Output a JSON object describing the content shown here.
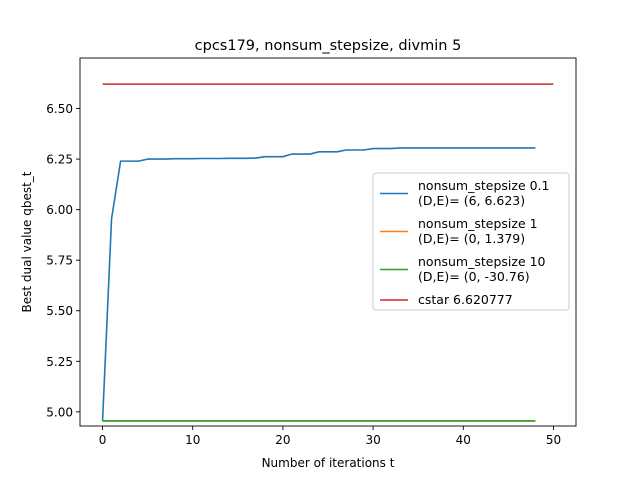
{
  "chart_data": {
    "type": "line",
    "title": "cpcs179, nonsum_stepsize, divmin 5",
    "xlabel": "Number of iterations t",
    "ylabel": "Best dual value qbest_t",
    "xlim": [
      -2.5,
      52.5
    ],
    "ylim": [
      4.93,
      6.75
    ],
    "xticks": [
      0,
      10,
      20,
      30,
      40,
      50
    ],
    "xtick_labels": [
      "0",
      "10",
      "20",
      "30",
      "40",
      "50"
    ],
    "yticks": [
      5.0,
      5.25,
      5.5,
      5.75,
      6.0,
      6.25,
      6.5
    ],
    "ytick_labels": [
      "5.00",
      "5.25",
      "5.50",
      "5.75",
      "6.00",
      "6.25",
      "6.50"
    ],
    "grid": false,
    "legend_position": "center-right",
    "series": [
      {
        "name": "nonsum_stepsize 0.1\n(D,E)= (6, 6.623)",
        "color": "#1f77b4",
        "x": [
          0,
          1,
          2,
          3,
          4,
          5,
          6,
          7,
          8,
          9,
          10,
          11,
          12,
          13,
          14,
          15,
          16,
          17,
          18,
          19,
          20,
          21,
          22,
          23,
          24,
          25,
          26,
          27,
          28,
          29,
          30,
          31,
          32,
          33,
          34,
          35,
          36,
          37,
          38,
          39,
          40,
          41,
          42,
          43,
          44,
          45,
          46,
          47,
          48
        ],
        "y": [
          4.955,
          5.955,
          6.24,
          6.24,
          6.24,
          6.25,
          6.25,
          6.25,
          6.252,
          6.252,
          6.252,
          6.253,
          6.253,
          6.253,
          6.254,
          6.254,
          6.254,
          6.255,
          6.262,
          6.262,
          6.262,
          6.275,
          6.275,
          6.275,
          6.286,
          6.286,
          6.286,
          6.295,
          6.295,
          6.295,
          6.302,
          6.302,
          6.302,
          6.305,
          6.305,
          6.305,
          6.305,
          6.305,
          6.305,
          6.305,
          6.305,
          6.305,
          6.305,
          6.305,
          6.305,
          6.305,
          6.305,
          6.305,
          6.305
        ]
      },
      {
        "name": "nonsum_stepsize 1\n(D,E)= (0, 1.379)",
        "color": "#ff7f0e",
        "x": [
          0,
          48
        ],
        "y": [
          4.955,
          4.955
        ]
      },
      {
        "name": "nonsum_stepsize 10\n(D,E)= (0, -30.76)",
        "color": "#2ca02c",
        "x": [
          0,
          48
        ],
        "y": [
          4.955,
          4.955
        ]
      },
      {
        "name": "cstar 6.620777",
        "color": "#d62728",
        "x": [
          0,
          50
        ],
        "y": [
          6.620777,
          6.620777
        ]
      }
    ]
  }
}
